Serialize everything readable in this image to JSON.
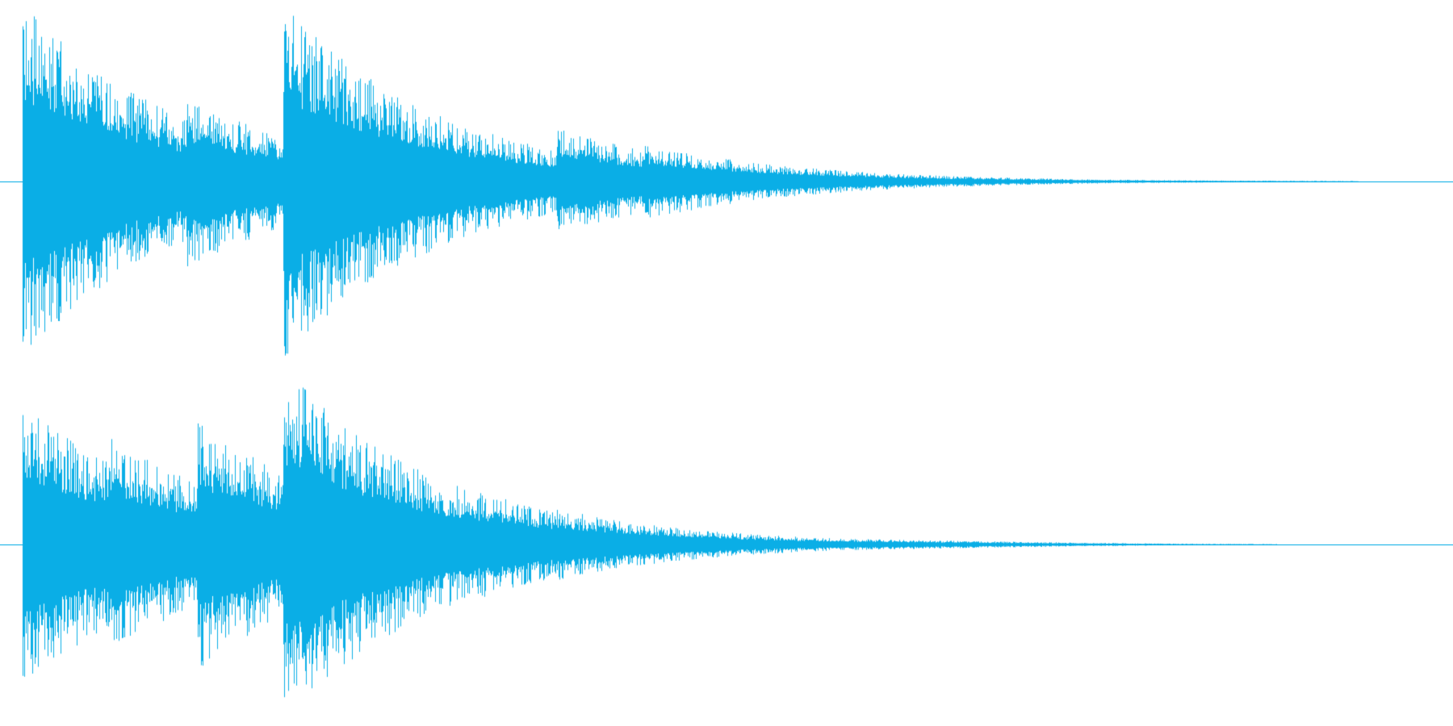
{
  "waveform": {
    "color": "#0aaee6",
    "channels": [
      {
        "name": "",
        "events": [
          {
            "t": 0.0,
            "amp": 1.0
          },
          {
            "t": 0.062,
            "amp": 0.55
          },
          {
            "t": 0.117,
            "amp": 0.48
          },
          {
            "t": 0.185,
            "amp": 1.0
          },
          {
            "t": 0.265,
            "amp": 0.34
          },
          {
            "t": 0.32,
            "amp": 0.3
          },
          {
            "t": 0.38,
            "amp": 0.3
          },
          {
            "t": 0.44,
            "amp": 0.22
          }
        ],
        "fade_end": 0.95
      },
      {
        "name": "",
        "events": [
          {
            "t": 0.0,
            "amp": 0.8
          },
          {
            "t": 0.062,
            "amp": 0.6
          },
          {
            "t": 0.124,
            "amp": 0.7
          },
          {
            "t": 0.185,
            "amp": 1.0
          },
          {
            "t": 0.265,
            "amp": 0.32
          },
          {
            "t": 0.325,
            "amp": 0.3
          },
          {
            "t": 0.38,
            "amp": 0.2
          },
          {
            "t": 0.44,
            "amp": 0.1
          }
        ],
        "fade_end": 0.92
      }
    ]
  }
}
